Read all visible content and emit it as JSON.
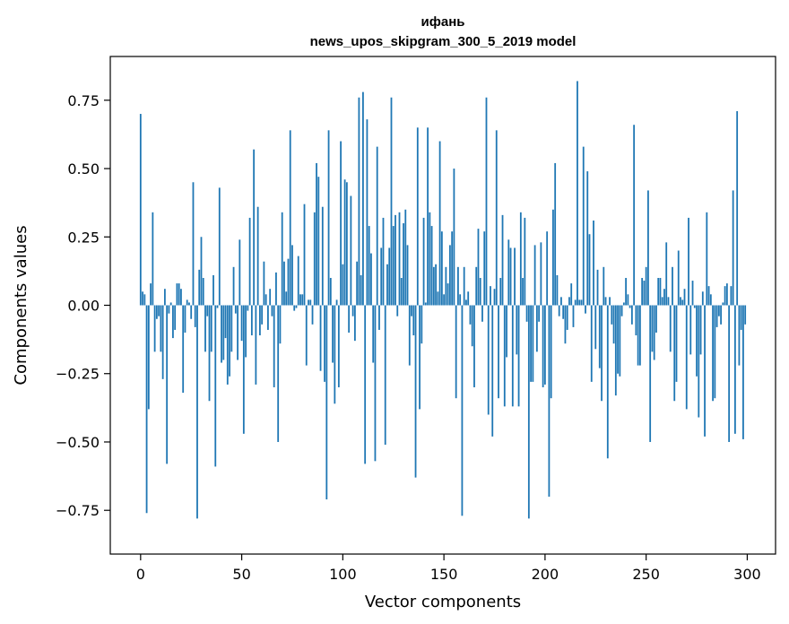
{
  "chart_data": {
    "type": "bar",
    "title_line1": "ифань",
    "title_line2": "news_upos_skipgram_300_5_2019 model",
    "xlabel": "Vector components",
    "ylabel": "Components values",
    "xlim": [
      -15,
      314
    ],
    "ylim": [
      -0.91,
      0.91
    ],
    "xticks": [
      0,
      50,
      100,
      150,
      200,
      250,
      300
    ],
    "xtick_labels": [
      "0",
      "50",
      "100",
      "150",
      "200",
      "250",
      "300"
    ],
    "yticks": [
      -0.75,
      -0.5,
      -0.25,
      0.0,
      0.25,
      0.5,
      0.75
    ],
    "ytick_labels": [
      "−0.75",
      "−0.50",
      "−0.25",
      "0.00",
      "0.25",
      "0.50",
      "0.75"
    ],
    "bar_color": "#1f77b4",
    "values": [
      0.7,
      0.05,
      0.04,
      -0.76,
      -0.38,
      0.08,
      0.34,
      -0.17,
      -0.05,
      -0.04,
      -0.17,
      -0.27,
      0.06,
      -0.58,
      -0.03,
      0.01,
      -0.12,
      -0.09,
      0.08,
      0.08,
      0.06,
      -0.32,
      -0.1,
      0.02,
      0.01,
      -0.05,
      0.45,
      -0.08,
      -0.78,
      0.13,
      0.25,
      0.1,
      -0.17,
      -0.04,
      -0.35,
      -0.17,
      0.11,
      -0.59,
      -0.01,
      0.43,
      -0.21,
      -0.2,
      -0.12,
      -0.29,
      -0.26,
      -0.17,
      0.14,
      -0.03,
      -0.2,
      0.24,
      -0.13,
      -0.47,
      -0.19,
      -0.02,
      0.32,
      -0.11,
      0.57,
      -0.29,
      0.36,
      -0.11,
      -0.07,
      0.16,
      0.04,
      -0.09,
      0.06,
      -0.04,
      -0.3,
      0.12,
      -0.5,
      -0.14,
      0.34,
      0.16,
      0.05,
      0.17,
      0.64,
      0.22,
      -0.02,
      -0.01,
      0.18,
      0.04,
      0.04,
      0.37,
      -0.22,
      0.02,
      0.02,
      -0.07,
      0.34,
      0.52,
      0.47,
      -0.24,
      0.36,
      -0.28,
      -0.71,
      0.64,
      0.1,
      -0.21,
      -0.36,
      0.02,
      -0.3,
      0.6,
      0.15,
      0.46,
      0.45,
      -0.1,
      0.4,
      -0.04,
      -0.13,
      0.16,
      0.76,
      0.11,
      0.78,
      -0.58,
      0.68,
      0.29,
      0.19,
      -0.21,
      -0.57,
      0.58,
      -0.09,
      0.21,
      0.32,
      -0.51,
      0.15,
      0.21,
      0.76,
      0.29,
      0.33,
      -0.04,
      0.34,
      0.1,
      0.3,
      0.35,
      0.22,
      -0.22,
      -0.04,
      -0.11,
      -0.63,
      0.65,
      -0.38,
      -0.14,
      0.32,
      0.01,
      0.65,
      0.34,
      0.29,
      0.14,
      0.15,
      0.05,
      0.6,
      0.27,
      0.04,
      0.14,
      0.08,
      0.22,
      0.27,
      0.5,
      -0.34,
      0.14,
      0.04,
      -0.77,
      0.14,
      0.02,
      0.05,
      -0.07,
      -0.15,
      -0.3,
      0.14,
      0.28,
      0.1,
      -0.06,
      0.27,
      0.76,
      -0.4,
      0.07,
      -0.48,
      0.06,
      0.64,
      -0.34,
      0.1,
      0.33,
      -0.37,
      -0.19,
      0.24,
      0.21,
      -0.37,
      0.21,
      -0.18,
      -0.37,
      0.34,
      0.1,
      0.32,
      -0.06,
      -0.78,
      -0.28,
      -0.28,
      0.22,
      -0.17,
      -0.06,
      0.23,
      -0.3,
      -0.29,
      0.27,
      -0.7,
      -0.34,
      0.35,
      0.52,
      0.11,
      -0.04,
      0.03,
      -0.05,
      -0.14,
      -0.09,
      0.03,
      0.08,
      -0.08,
      0.02,
      0.82,
      0.02,
      0.02,
      0.58,
      -0.03,
      0.49,
      0.26,
      -0.28,
      0.31,
      -0.16,
      0.13,
      -0.23,
      -0.35,
      0.14,
      0.03,
      -0.56,
      0.03,
      -0.07,
      -0.14,
      -0.33,
      -0.25,
      -0.26,
      -0.04,
      0.01,
      0.1,
      0.04,
      -0.01,
      -0.07,
      0.66,
      -0.11,
      -0.22,
      -0.22,
      0.1,
      0.09,
      0.14,
      0.42,
      -0.5,
      -0.17,
      -0.2,
      -0.1,
      0.1,
      0.1,
      0.03,
      0.06,
      0.23,
      0.03,
      -0.17,
      0.14,
      -0.35,
      -0.28,
      0.2,
      0.03,
      0.02,
      0.06,
      -0.38,
      0.32,
      -0.18,
      0.09,
      -0.01,
      -0.26,
      -0.41,
      -0.18,
      0.05,
      -0.48,
      0.34,
      0.07,
      0.04,
      -0.35,
      -0.34,
      -0.08,
      -0.04,
      -0.07,
      0.01,
      0.07,
      0.08,
      -0.5,
      0.07,
      0.42,
      -0.47,
      0.71,
      -0.22,
      -0.09,
      -0.49,
      -0.07
    ]
  }
}
